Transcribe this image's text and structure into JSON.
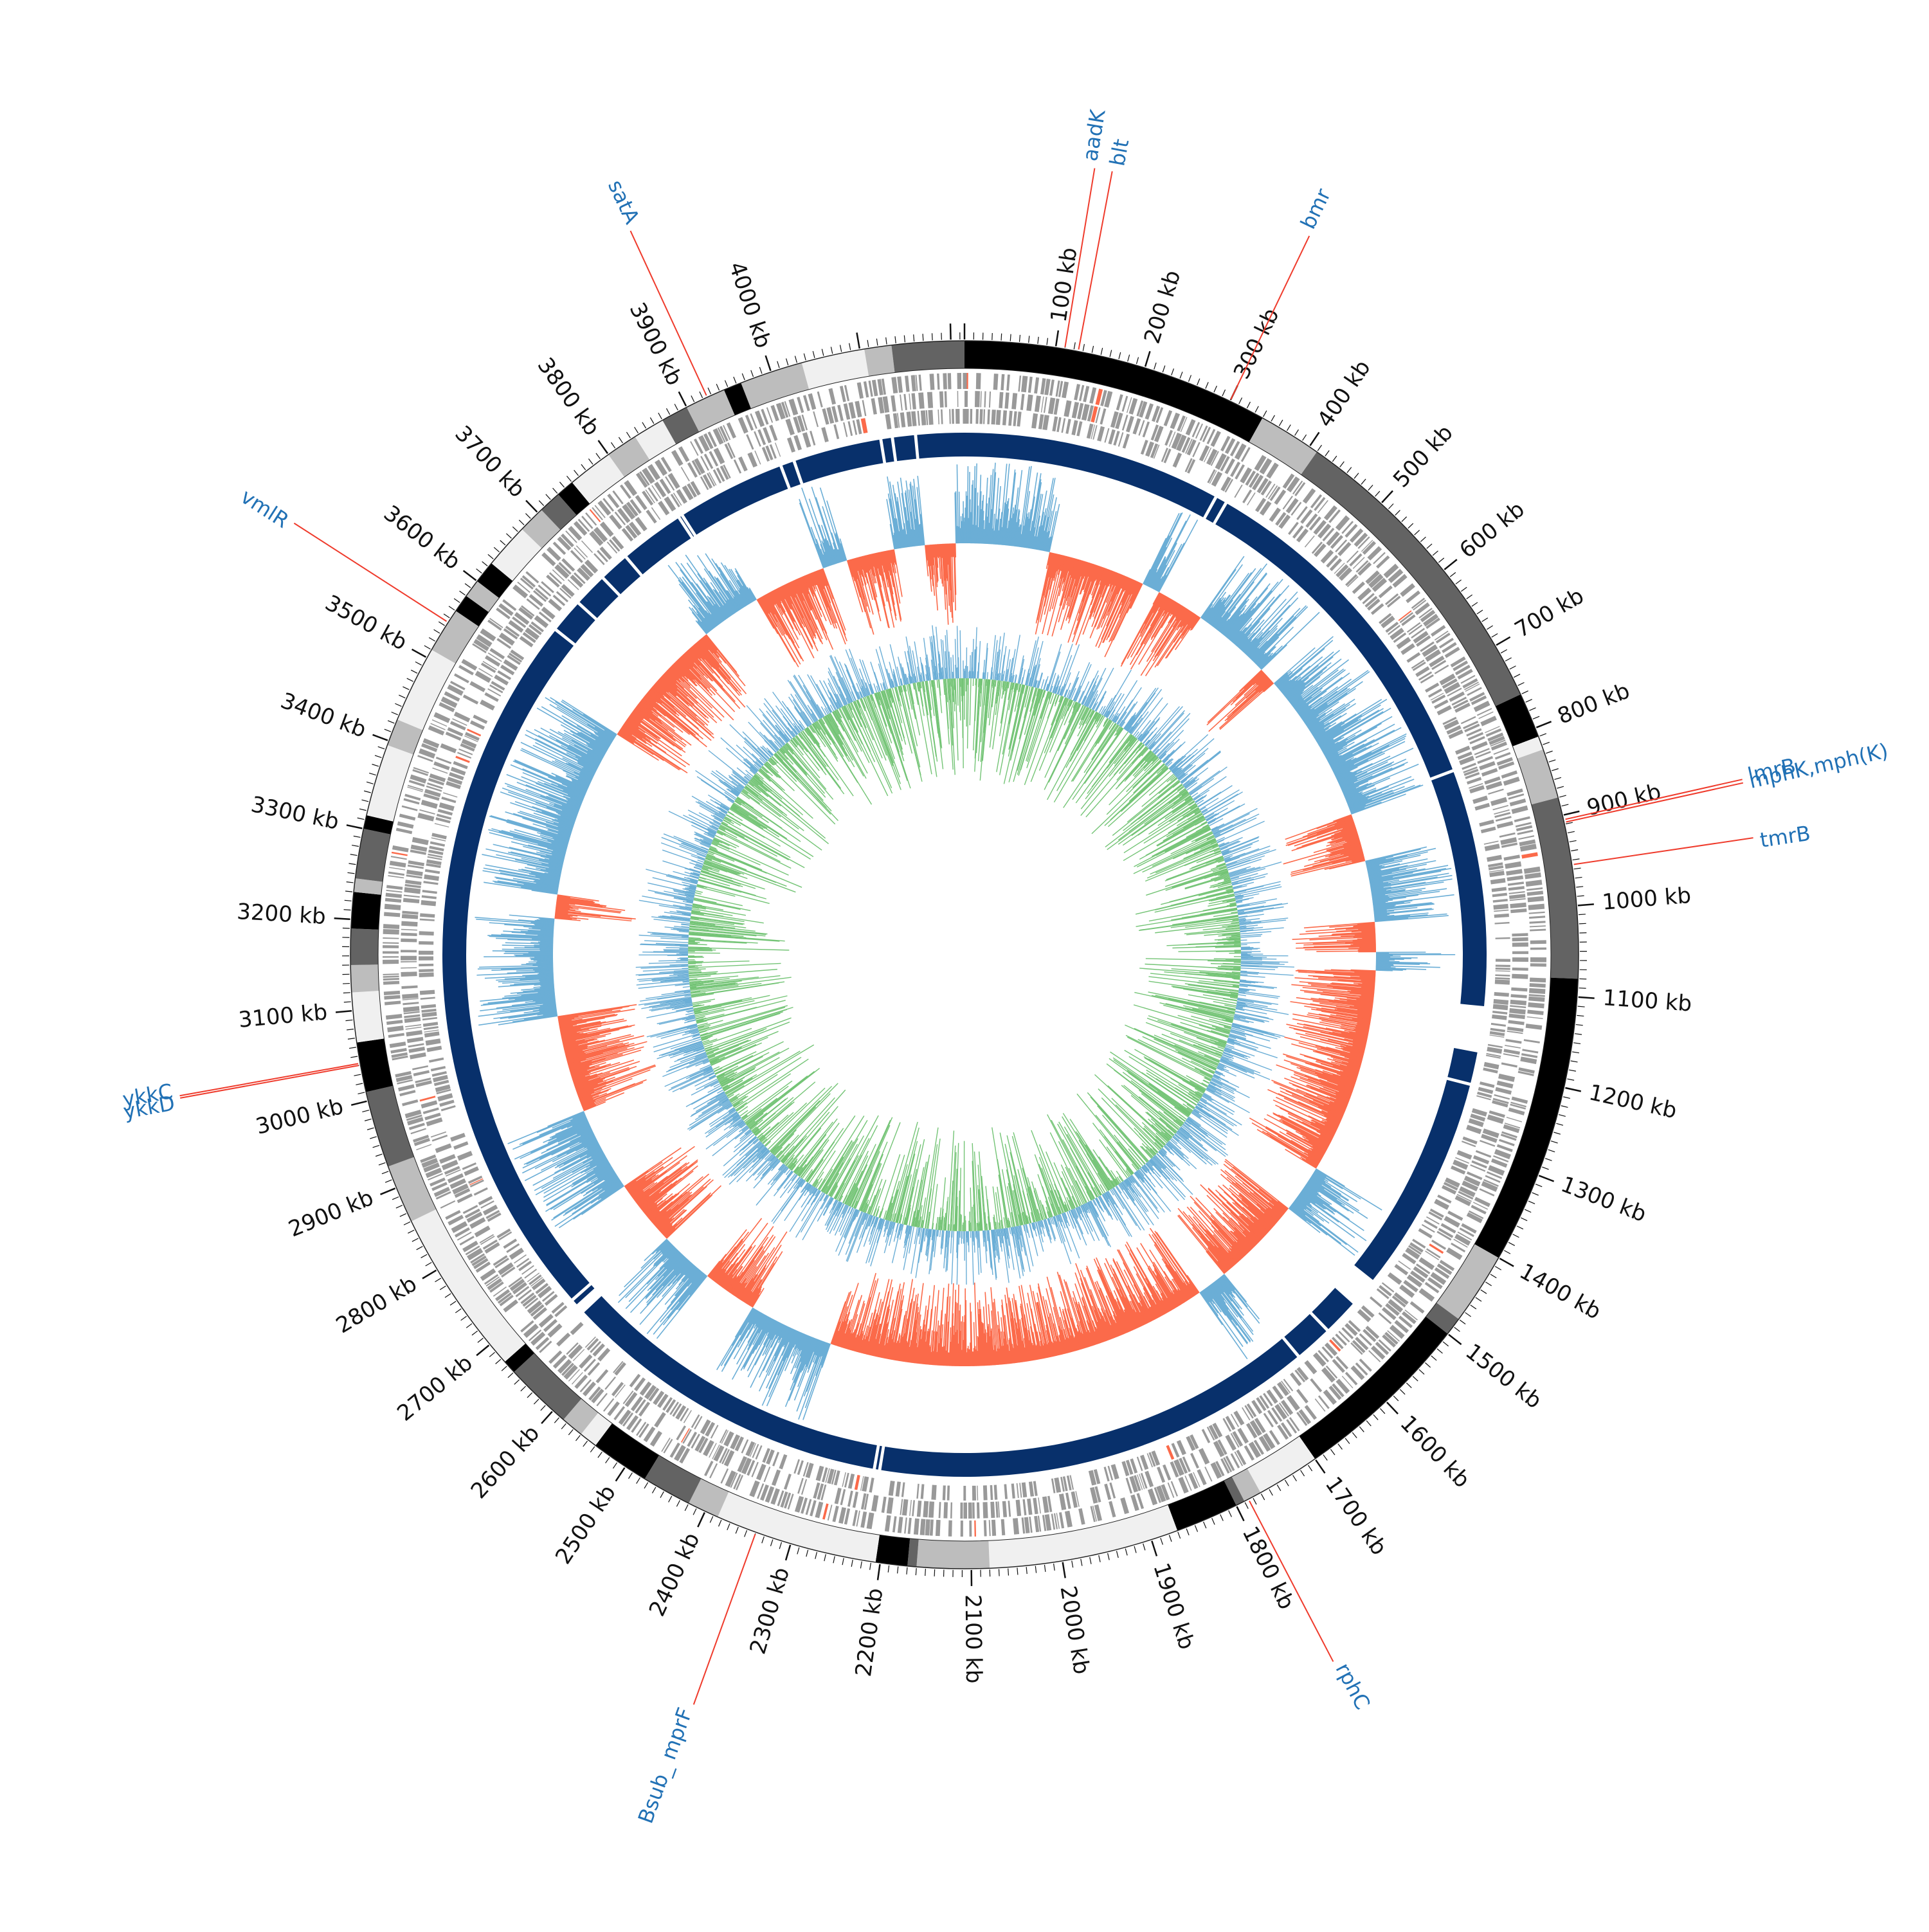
{
  "genome": {
    "length_kb": 4215,
    "tick_unit": "kb",
    "major_tick_step_kb": 100
  },
  "tick_labels": [
    "100 kb",
    "200 kb",
    "300 kb",
    "400 kb",
    "500 kb",
    "600 kb",
    "700 kb",
    "800 kb",
    "900 kb",
    "1000 kb",
    "1100 kb",
    "1200 kb",
    "1300 kb",
    "1400 kb",
    "1500 kb",
    "1600 kb",
    "1700 kb",
    "1800 kb",
    "1900 kb",
    "2000 kb",
    "2100 kb",
    "2200 kb",
    "2300 kb",
    "2400 kb",
    "2500 kb",
    "2600 kb",
    "2700 kb",
    "2800 kb",
    "2900 kb",
    "3000 kb",
    "3100 kb",
    "3200 kb",
    "3300 kb",
    "3400 kb",
    "3500 kb",
    "3600 kb",
    "3700 kb",
    "3800 kb",
    "3900 kb",
    "4000 kb"
  ],
  "gene_labels": [
    {
      "text": "aadK",
      "kb": 110
    },
    {
      "text": "blt",
      "kb": 125
    },
    {
      "text": "bmr",
      "kb": 300
    },
    {
      "text": "mphK,mph(K)",
      "kb": 905
    },
    {
      "text": "lmrB",
      "kb": 908
    },
    {
      "text": "tmrB",
      "kb": 955
    },
    {
      "text": "rphC",
      "kb": 1785
    },
    {
      "text": "Bsub_ mprF",
      "kb": 2340
    },
    {
      "text": "ykkD",
      "kb": 3040
    },
    {
      "text": "ykkC",
      "kb": 3042
    },
    {
      "text": "vmlR",
      "kb": 3545
    },
    {
      "text": "satA",
      "kb": 3925
    }
  ],
  "outer_blocks": [
    {
      "start": 3965,
      "end": 4035,
      "shade": "#bdbdbd"
    },
    {
      "start": 4035,
      "end": 4105,
      "shade": "#f0f0f0"
    },
    {
      "start": 4105,
      "end": 4135,
      "shade": "#bdbdbd"
    },
    {
      "start": 4135,
      "end": 4215,
      "shade": "#636363"
    },
    {
      "start": 0,
      "end": 340,
      "shade": "#000000"
    },
    {
      "start": 340,
      "end": 410,
      "shade": "#bdbdbd"
    },
    {
      "start": 410,
      "end": 760,
      "shade": "#636363"
    },
    {
      "start": 760,
      "end": 810,
      "shade": "#000000"
    },
    {
      "start": 810,
      "end": 825,
      "shade": "#f0f0f0"
    },
    {
      "start": 825,
      "end": 880,
      "shade": "#bdbdbd"
    },
    {
      "start": 880,
      "end": 1080,
      "shade": "#636363"
    },
    {
      "start": 1080,
      "end": 1400,
      "shade": "#000000"
    },
    {
      "start": 1400,
      "end": 1480,
      "shade": "#bdbdbd"
    },
    {
      "start": 1480,
      "end": 1500,
      "shade": "#636363"
    },
    {
      "start": 1500,
      "end": 1700,
      "shade": "#000000"
    },
    {
      "start": 1700,
      "end": 1770,
      "shade": "#f0f0f0"
    },
    {
      "start": 1770,
      "end": 1790,
      "shade": "#bdbdbd"
    },
    {
      "start": 1790,
      "end": 1800,
      "shade": "#636363"
    },
    {
      "start": 1800,
      "end": 1870,
      "shade": "#000000"
    },
    {
      "start": 1870,
      "end": 2080,
      "shade": "#f0f0f0"
    },
    {
      "start": 2080,
      "end": 2160,
      "shade": "#bdbdbd"
    },
    {
      "start": 2160,
      "end": 2170,
      "shade": "#636363"
    },
    {
      "start": 2170,
      "end": 2205,
      "shade": "#000000"
    },
    {
      "start": 2205,
      "end": 2385,
      "shade": "#f0f0f0"
    },
    {
      "start": 2385,
      "end": 2420,
      "shade": "#bdbdbd"
    },
    {
      "start": 2420,
      "end": 2475,
      "shade": "#636363"
    },
    {
      "start": 2475,
      "end": 2540,
      "shade": "#000000"
    },
    {
      "start": 2540,
      "end": 2560,
      "shade": "#f0f0f0"
    },
    {
      "start": 2560,
      "end": 2585,
      "shade": "#bdbdbd"
    },
    {
      "start": 2585,
      "end": 2660,
      "shade": "#636363"
    },
    {
      "start": 2660,
      "end": 2675,
      "shade": "#000000"
    },
    {
      "start": 2675,
      "end": 2860,
      "shade": "#f0f0f0"
    },
    {
      "start": 2860,
      "end": 2925,
      "shade": "#bdbdbd"
    },
    {
      "start": 2925,
      "end": 3010,
      "shade": "#636363"
    },
    {
      "start": 3010,
      "end": 3065,
      "shade": "#000000"
    },
    {
      "start": 3065,
      "end": 3120,
      "shade": "#f0f0f0"
    },
    {
      "start": 3120,
      "end": 3150,
      "shade": "#bdbdbd"
    },
    {
      "start": 3150,
      "end": 3190,
      "shade": "#636363"
    },
    {
      "start": 3190,
      "end": 3230,
      "shade": "#000000"
    },
    {
      "start": 3230,
      "end": 3245,
      "shade": "#bdbdbd"
    },
    {
      "start": 3245,
      "end": 3300,
      "shade": "#636363"
    },
    {
      "start": 3300,
      "end": 3315,
      "shade": "#000000"
    },
    {
      "start": 3315,
      "end": 3395,
      "shade": "#f0f0f0"
    },
    {
      "start": 3395,
      "end": 3425,
      "shade": "#bdbdbd"
    },
    {
      "start": 3425,
      "end": 3510,
      "shade": "#f0f0f0"
    },
    {
      "start": 3510,
      "end": 3560,
      "shade": "#bdbdbd"
    },
    {
      "start": 3560,
      "end": 3580,
      "shade": "#000000"
    },
    {
      "start": 3580,
      "end": 3600,
      "shade": "#bdbdbd"
    },
    {
      "start": 3600,
      "end": 3625,
      "shade": "#000000"
    },
    {
      "start": 3625,
      "end": 3675,
      "shade": "#f0f0f0"
    },
    {
      "start": 3675,
      "end": 3705,
      "shade": "#bdbdbd"
    },
    {
      "start": 3705,
      "end": 3730,
      "shade": "#636363"
    },
    {
      "start": 3730,
      "end": 3750,
      "shade": "#000000"
    },
    {
      "start": 3750,
      "end": 3800,
      "shade": "#f0f0f0"
    },
    {
      "start": 3800,
      "end": 3835,
      "shade": "#bdbdbd"
    },
    {
      "start": 3835,
      "end": 3870,
      "shade": "#f0f0f0"
    },
    {
      "start": 3870,
      "end": 3900,
      "shade": "#636363"
    },
    {
      "start": 3900,
      "end": 3945,
      "shade": "#bdbdbd"
    },
    {
      "start": 3945,
      "end": 3965,
      "shade": "#000000"
    }
  ],
  "dark_blue_gaps_kb": [
    3972,
    3990,
    4105,
    4120,
    4150,
    335,
    350,
    810,
    1125,
    1220,
    1505,
    1525,
    1590,
    1640,
    2215,
    2222,
    2665,
    2675,
    3610,
    3655,
    3700,
    3740,
    3825,
    3830
  ],
  "big_blue_gaps": [
    {
      "start": 1120,
      "end": 1180
    },
    {
      "start": 1505,
      "end": 1545
    },
    {
      "start": 2655,
      "end": 2668
    }
  ],
  "colors": {
    "tick": "#111111",
    "label_blue": "#2171b5",
    "leader_line": "#ef3b2c",
    "dark_blue_track": "#08306b",
    "feature_grey": "#999999",
    "gc_light_blue": "#6baed6",
    "gc_red": "#fb6a4a",
    "skew_light_blue": "#6baed6",
    "skew_green": "#74c476"
  }
}
